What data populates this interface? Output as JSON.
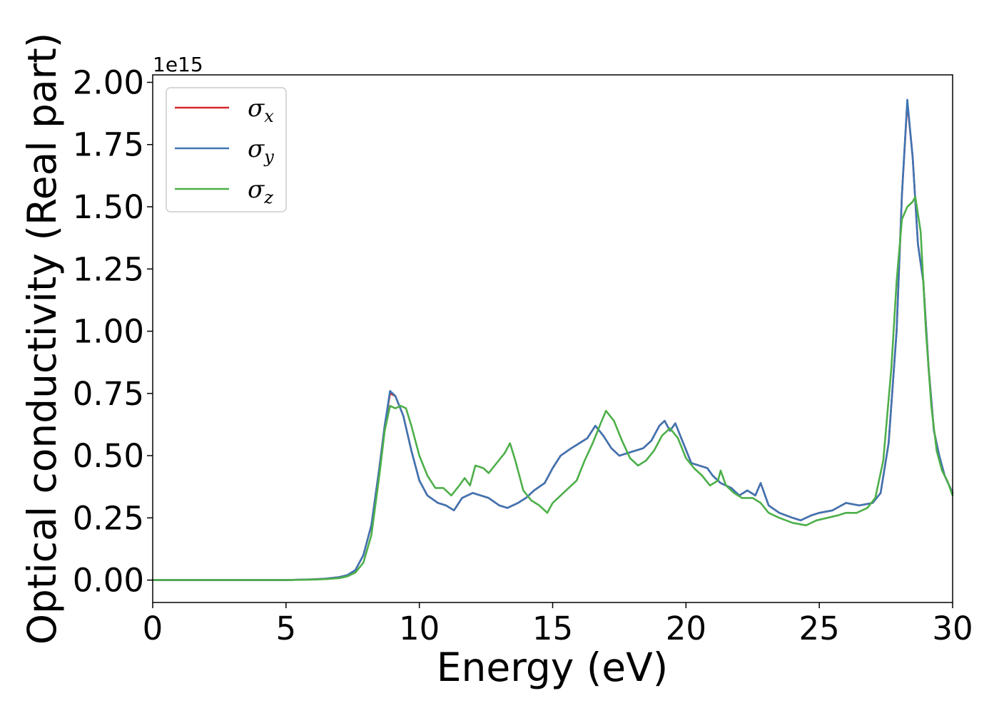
{
  "chart_data": {
    "type": "line",
    "xlabel": "Energy (eV)",
    "ylabel": "Optical conductivity (Real part)",
    "y_offset_label": "1e15",
    "y_scale_factor": 1000000000000000.0,
    "xlim": [
      0,
      30
    ],
    "ylim": [
      -0.09,
      2.03
    ],
    "xticks": [
      0,
      5,
      10,
      15,
      20,
      25,
      30
    ],
    "xtick_labels": [
      "0",
      "5",
      "10",
      "15",
      "20",
      "25",
      "30"
    ],
    "yticks": [
      0.0,
      0.25,
      0.5,
      0.75,
      1.0,
      1.25,
      1.5,
      1.75,
      2.0
    ],
    "ytick_labels": [
      "0.00",
      "0.25",
      "0.50",
      "0.75",
      "1.00",
      "1.25",
      "1.50",
      "1.75",
      "2.00"
    ],
    "grid": false,
    "legend_position": "top-left",
    "series": [
      {
        "name": "σx",
        "symbol": "σ",
        "subscript": "x",
        "color": "#d62728",
        "points": [
          [
            0,
            0
          ],
          [
            3,
            0
          ],
          [
            5,
            0
          ],
          [
            6,
            0.003
          ],
          [
            6.5,
            0.006
          ],
          [
            7,
            0.012
          ],
          [
            7.3,
            0.02
          ],
          [
            7.6,
            0.04
          ],
          [
            7.9,
            0.1
          ],
          [
            8.2,
            0.22
          ],
          [
            8.5,
            0.45
          ],
          [
            8.7,
            0.62
          ],
          [
            8.9,
            0.75
          ],
          [
            9.1,
            0.74
          ],
          [
            9.4,
            0.66
          ],
          [
            9.7,
            0.52
          ],
          [
            10,
            0.4
          ],
          [
            10.3,
            0.34
          ],
          [
            10.7,
            0.31
          ],
          [
            11,
            0.3
          ],
          [
            11.3,
            0.28
          ],
          [
            11.6,
            0.33
          ],
          [
            12,
            0.35
          ],
          [
            12.3,
            0.34
          ],
          [
            12.6,
            0.33
          ],
          [
            13,
            0.3
          ],
          [
            13.3,
            0.29
          ],
          [
            13.7,
            0.31
          ],
          [
            14,
            0.33
          ],
          [
            14.3,
            0.36
          ],
          [
            14.7,
            0.39
          ],
          [
            15,
            0.45
          ],
          [
            15.3,
            0.5
          ],
          [
            15.7,
            0.53
          ],
          [
            16,
            0.55
          ],
          [
            16.3,
            0.57
          ],
          [
            16.6,
            0.62
          ],
          [
            16.9,
            0.58
          ],
          [
            17.2,
            0.53
          ],
          [
            17.5,
            0.5
          ],
          [
            17.8,
            0.51
          ],
          [
            18.1,
            0.52
          ],
          [
            18.4,
            0.53
          ],
          [
            18.7,
            0.56
          ],
          [
            19,
            0.62
          ],
          [
            19.2,
            0.64
          ],
          [
            19.4,
            0.6
          ],
          [
            19.6,
            0.63
          ],
          [
            19.9,
            0.55
          ],
          [
            20.2,
            0.47
          ],
          [
            20.5,
            0.46
          ],
          [
            20.8,
            0.45
          ],
          [
            21,
            0.42
          ],
          [
            21.3,
            0.39
          ],
          [
            21.7,
            0.37
          ],
          [
            22,
            0.34
          ],
          [
            22.3,
            0.36
          ],
          [
            22.6,
            0.34
          ],
          [
            22.8,
            0.39
          ],
          [
            23.1,
            0.3
          ],
          [
            23.5,
            0.27
          ],
          [
            24,
            0.25
          ],
          [
            24.3,
            0.24
          ],
          [
            24.7,
            0.26
          ],
          [
            25,
            0.27
          ],
          [
            25.5,
            0.28
          ],
          [
            26,
            0.31
          ],
          [
            26.5,
            0.3
          ],
          [
            27,
            0.31
          ],
          [
            27.3,
            0.35
          ],
          [
            27.6,
            0.55
          ],
          [
            27.9,
            1.0
          ],
          [
            28.1,
            1.55
          ],
          [
            28.3,
            1.92
          ],
          [
            28.5,
            1.7
          ],
          [
            28.7,
            1.35
          ],
          [
            28.9,
            1.2
          ],
          [
            29.1,
            0.85
          ],
          [
            29.3,
            0.6
          ],
          [
            29.5,
            0.5
          ],
          [
            29.7,
            0.42
          ],
          [
            30,
            0.35
          ]
        ]
      },
      {
        "name": "σy",
        "symbol": "σ",
        "subscript": "y",
        "color": "#3e75b4",
        "points": [
          [
            0,
            0
          ],
          [
            3,
            0
          ],
          [
            5,
            0
          ],
          [
            6,
            0.003
          ],
          [
            6.5,
            0.006
          ],
          [
            7,
            0.012
          ],
          [
            7.3,
            0.02
          ],
          [
            7.6,
            0.04
          ],
          [
            7.9,
            0.1
          ],
          [
            8.2,
            0.22
          ],
          [
            8.5,
            0.45
          ],
          [
            8.7,
            0.62
          ],
          [
            8.9,
            0.76
          ],
          [
            9.1,
            0.74
          ],
          [
            9.4,
            0.66
          ],
          [
            9.7,
            0.52
          ],
          [
            10,
            0.4
          ],
          [
            10.3,
            0.34
          ],
          [
            10.7,
            0.31
          ],
          [
            11,
            0.3
          ],
          [
            11.3,
            0.28
          ],
          [
            11.6,
            0.33
          ],
          [
            12,
            0.35
          ],
          [
            12.3,
            0.34
          ],
          [
            12.6,
            0.33
          ],
          [
            13,
            0.3
          ],
          [
            13.3,
            0.29
          ],
          [
            13.7,
            0.31
          ],
          [
            14,
            0.33
          ],
          [
            14.3,
            0.36
          ],
          [
            14.7,
            0.39
          ],
          [
            15,
            0.45
          ],
          [
            15.3,
            0.5
          ],
          [
            15.7,
            0.53
          ],
          [
            16,
            0.55
          ],
          [
            16.3,
            0.57
          ],
          [
            16.6,
            0.62
          ],
          [
            16.9,
            0.58
          ],
          [
            17.2,
            0.53
          ],
          [
            17.5,
            0.5
          ],
          [
            17.8,
            0.51
          ],
          [
            18.1,
            0.52
          ],
          [
            18.4,
            0.53
          ],
          [
            18.7,
            0.56
          ],
          [
            19,
            0.62
          ],
          [
            19.2,
            0.64
          ],
          [
            19.4,
            0.6
          ],
          [
            19.6,
            0.63
          ],
          [
            19.9,
            0.55
          ],
          [
            20.2,
            0.47
          ],
          [
            20.5,
            0.46
          ],
          [
            20.8,
            0.45
          ],
          [
            21,
            0.42
          ],
          [
            21.3,
            0.39
          ],
          [
            21.7,
            0.37
          ],
          [
            22,
            0.34
          ],
          [
            22.3,
            0.36
          ],
          [
            22.6,
            0.34
          ],
          [
            22.8,
            0.39
          ],
          [
            23.1,
            0.3
          ],
          [
            23.5,
            0.27
          ],
          [
            24,
            0.25
          ],
          [
            24.3,
            0.24
          ],
          [
            24.7,
            0.26
          ],
          [
            25,
            0.27
          ],
          [
            25.5,
            0.28
          ],
          [
            26,
            0.31
          ],
          [
            26.5,
            0.3
          ],
          [
            27,
            0.31
          ],
          [
            27.3,
            0.35
          ],
          [
            27.6,
            0.55
          ],
          [
            27.9,
            1.0
          ],
          [
            28.1,
            1.55
          ],
          [
            28.3,
            1.93
          ],
          [
            28.5,
            1.7
          ],
          [
            28.7,
            1.35
          ],
          [
            28.9,
            1.2
          ],
          [
            29.1,
            0.85
          ],
          [
            29.3,
            0.6
          ],
          [
            29.5,
            0.5
          ],
          [
            29.7,
            0.42
          ],
          [
            30,
            0.35
          ]
        ]
      },
      {
        "name": "σz",
        "symbol": "σ",
        "subscript": "z",
        "color": "#4daf4a",
        "points": [
          [
            0,
            0
          ],
          [
            3,
            0
          ],
          [
            5,
            0
          ],
          [
            6,
            0.002
          ],
          [
            6.5,
            0.004
          ],
          [
            7,
            0.008
          ],
          [
            7.3,
            0.015
          ],
          [
            7.6,
            0.03
          ],
          [
            7.9,
            0.07
          ],
          [
            8.2,
            0.18
          ],
          [
            8.5,
            0.42
          ],
          [
            8.7,
            0.6
          ],
          [
            8.9,
            0.7
          ],
          [
            9.1,
            0.69
          ],
          [
            9.3,
            0.7
          ],
          [
            9.5,
            0.69
          ],
          [
            9.7,
            0.62
          ],
          [
            10,
            0.5
          ],
          [
            10.3,
            0.42
          ],
          [
            10.6,
            0.37
          ],
          [
            10.9,
            0.37
          ],
          [
            11.2,
            0.34
          ],
          [
            11.5,
            0.38
          ],
          [
            11.7,
            0.41
          ],
          [
            11.9,
            0.38
          ],
          [
            12.1,
            0.46
          ],
          [
            12.4,
            0.45
          ],
          [
            12.6,
            0.43
          ],
          [
            12.9,
            0.47
          ],
          [
            13.2,
            0.51
          ],
          [
            13.4,
            0.55
          ],
          [
            13.6,
            0.48
          ],
          [
            13.9,
            0.36
          ],
          [
            14.2,
            0.32
          ],
          [
            14.5,
            0.3
          ],
          [
            14.8,
            0.27
          ],
          [
            15,
            0.31
          ],
          [
            15.3,
            0.34
          ],
          [
            15.6,
            0.37
          ],
          [
            15.9,
            0.4
          ],
          [
            16.2,
            0.48
          ],
          [
            16.5,
            0.55
          ],
          [
            16.8,
            0.63
          ],
          [
            17,
            0.68
          ],
          [
            17.3,
            0.64
          ],
          [
            17.6,
            0.56
          ],
          [
            17.9,
            0.49
          ],
          [
            18.2,
            0.46
          ],
          [
            18.5,
            0.48
          ],
          [
            18.8,
            0.52
          ],
          [
            19.1,
            0.58
          ],
          [
            19.4,
            0.61
          ],
          [
            19.7,
            0.57
          ],
          [
            20,
            0.49
          ],
          [
            20.3,
            0.45
          ],
          [
            20.6,
            0.42
          ],
          [
            20.9,
            0.38
          ],
          [
            21.2,
            0.4
          ],
          [
            21.3,
            0.44
          ],
          [
            21.5,
            0.38
          ],
          [
            21.8,
            0.35
          ],
          [
            22.1,
            0.33
          ],
          [
            22.5,
            0.33
          ],
          [
            22.8,
            0.31
          ],
          [
            23.1,
            0.27
          ],
          [
            23.5,
            0.25
          ],
          [
            24,
            0.23
          ],
          [
            24.5,
            0.22
          ],
          [
            24.9,
            0.24
          ],
          [
            25.3,
            0.25
          ],
          [
            25.7,
            0.26
          ],
          [
            26,
            0.27
          ],
          [
            26.4,
            0.27
          ],
          [
            26.8,
            0.29
          ],
          [
            27.1,
            0.33
          ],
          [
            27.4,
            0.48
          ],
          [
            27.7,
            0.85
          ],
          [
            27.9,
            1.2
          ],
          [
            28.1,
            1.45
          ],
          [
            28.3,
            1.5
          ],
          [
            28.5,
            1.52
          ],
          [
            28.6,
            1.54
          ],
          [
            28.8,
            1.4
          ],
          [
            29,
            1.0
          ],
          [
            29.2,
            0.7
          ],
          [
            29.4,
            0.52
          ],
          [
            29.6,
            0.44
          ],
          [
            29.8,
            0.4
          ],
          [
            30,
            0.34
          ]
        ]
      }
    ]
  }
}
